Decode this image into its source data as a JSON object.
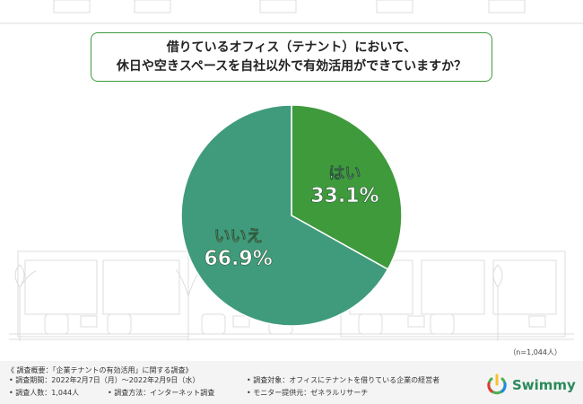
{
  "question": {
    "line1": "借りているオフィス（テナント）において、",
    "line2": "休日や空きスペースを自社以外で有効活用ができていますか？"
  },
  "chart_data": {
    "type": "pie",
    "slices": [
      {
        "label": "はい",
        "value": 33.1,
        "display": "33.1%",
        "color": "#3f9a3c"
      },
      {
        "label": "いいえ",
        "value": 66.9,
        "display": "66.9%",
        "color": "#3f9b7c"
      }
    ],
    "note": "（n=1,044人）"
  },
  "survey": {
    "heading": "《 調査概要：「企業テナントの有効活用」に関する調査》",
    "period": "• 調査期間：2022年2月7日（月）〜2022年2月9日（水）",
    "target": "• 調査対象：オフィスにテナントを借りている企業の経営者",
    "count": "• 調査人数：1,044人",
    "method": "• 調査方法：インターネット調査",
    "monitor": "• モニター提供元：ゼネラルリサーチ"
  },
  "logo": {
    "text": "Swimmy",
    "icon": "power-icon"
  }
}
